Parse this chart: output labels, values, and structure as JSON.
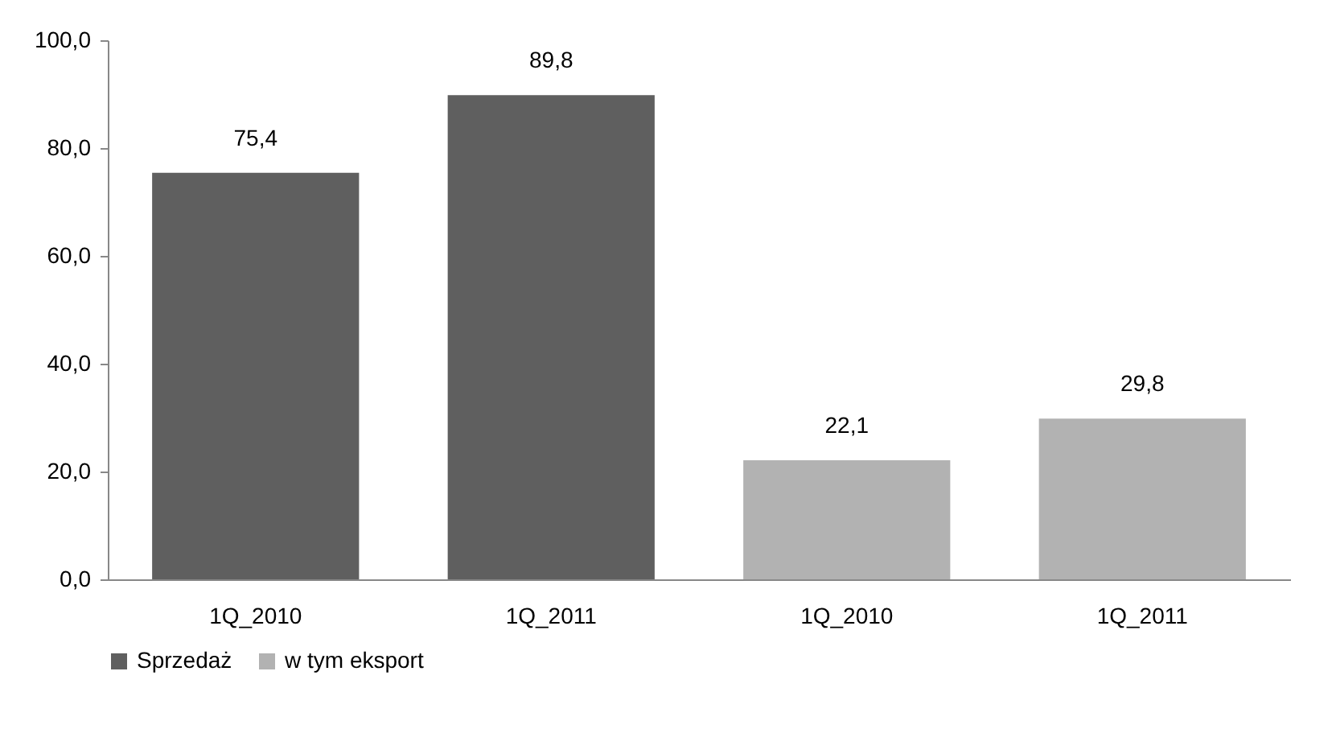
{
  "chart_data": {
    "type": "bar",
    "categories": [
      "1Q_2010",
      "1Q_2011",
      "1Q_2010",
      "1Q_2011"
    ],
    "series": [
      {
        "name": "Sprzedaż",
        "color": "#5f5f5f",
        "values": [
          75.4,
          89.8,
          null,
          null
        ],
        "value_labels": [
          "75,4",
          "89,8",
          null,
          null
        ]
      },
      {
        "name": "w tym eksport",
        "color": "#b2b2b2",
        "values": [
          null,
          null,
          22.1,
          29.8
        ],
        "value_labels": [
          null,
          null,
          "22,1",
          "29,8"
        ]
      }
    ],
    "ylim": [
      0,
      100
    ],
    "yticks": [
      {
        "value": 0,
        "label": "0,0"
      },
      {
        "value": 20,
        "label": "20,0"
      },
      {
        "value": 40,
        "label": "40,0"
      },
      {
        "value": 60,
        "label": "60,0"
      },
      {
        "value": 80,
        "label": "80,0"
      },
      {
        "value": 100,
        "label": "100,0"
      }
    ],
    "grid": false,
    "legend": "bottom"
  }
}
